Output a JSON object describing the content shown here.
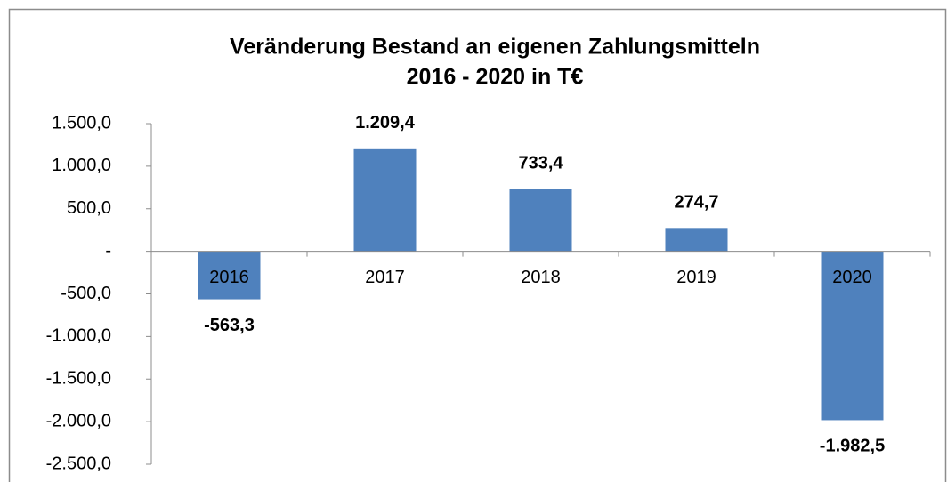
{
  "chart_data": {
    "type": "bar",
    "title": [
      "Veränderung Bestand an eigenen Zahlungsmitteln",
      "2016 - 2020 in T€"
    ],
    "categories": [
      "2016",
      "2017",
      "2018",
      "2019",
      "2020"
    ],
    "values": [
      -563.3,
      1209.4,
      733.4,
      274.7,
      -1982.5
    ],
    "value_labels": [
      "-563,3",
      "1.209,4",
      "733,4",
      "274,7",
      "-1.982,5"
    ],
    "color": "#4f81bd",
    "ylim": [
      -2500,
      1500
    ],
    "yticks": [
      {
        "value": -2500,
        "label": "-2.500,0"
      },
      {
        "value": -2000,
        "label": "-2.000,0"
      },
      {
        "value": -1500,
        "label": "-1.500,0"
      },
      {
        "value": -1000,
        "label": "-1.000,0"
      },
      {
        "value": -500,
        "label": "-500,0"
      },
      {
        "value": 0,
        "label": "-"
      },
      {
        "value": 500,
        "label": "500,0"
      },
      {
        "value": 1000,
        "label": "1.000,0"
      },
      {
        "value": 1500,
        "label": "1.500,0"
      }
    ]
  }
}
